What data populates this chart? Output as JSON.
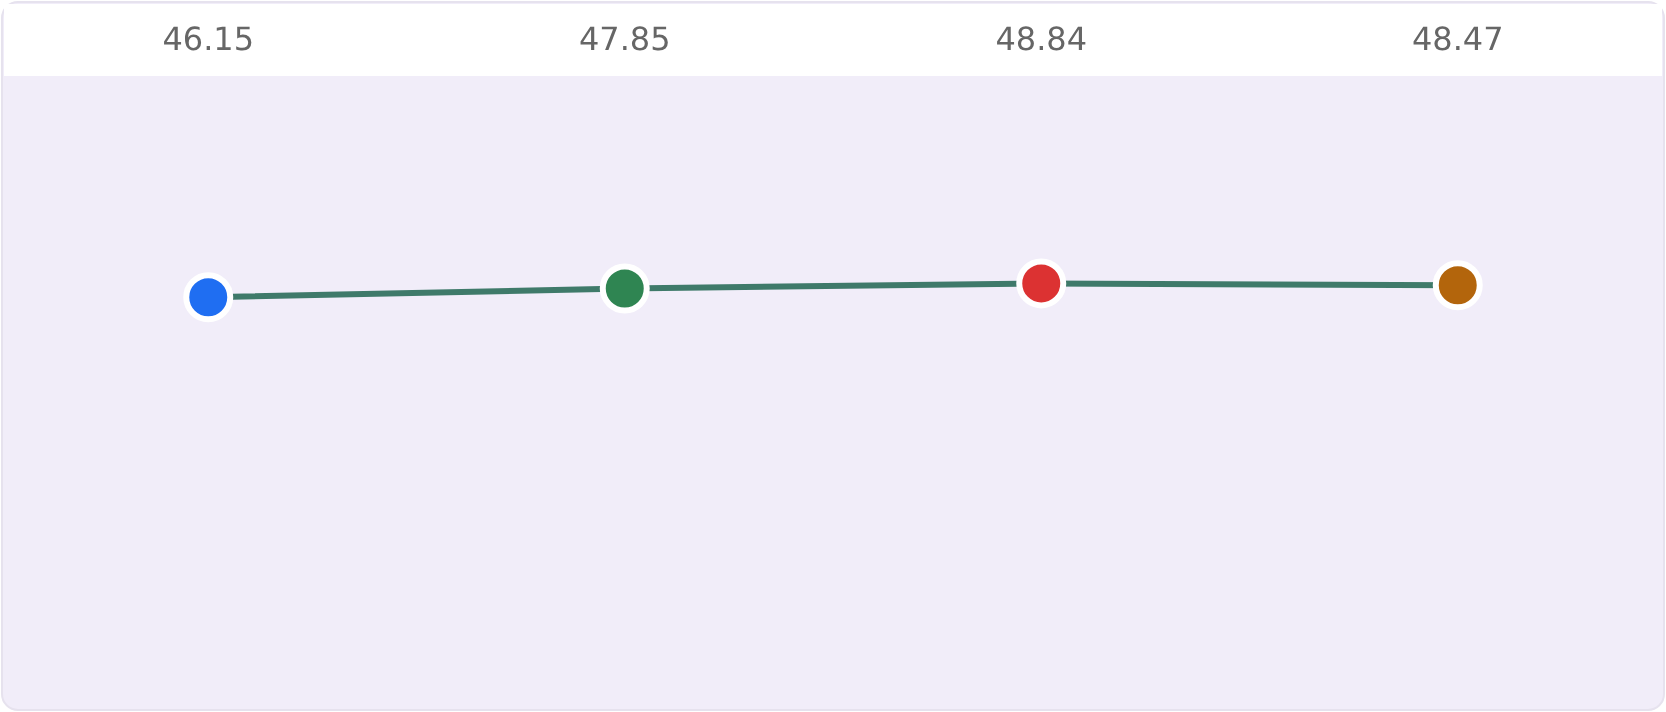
{
  "chart_data": {
    "type": "line",
    "categories": [
      null,
      null,
      null,
      null
    ],
    "series": [
      {
        "color": "#3f7a6a",
        "colors": [
          "#1f6ef2",
          "#2f8552",
          "#dc3232",
          "#b3650c"
        ],
        "values": [
          46.15,
          47.85,
          48.84,
          48.47
        ]
      }
    ],
    "data_labels": true,
    "marker": "circle"
  }
}
